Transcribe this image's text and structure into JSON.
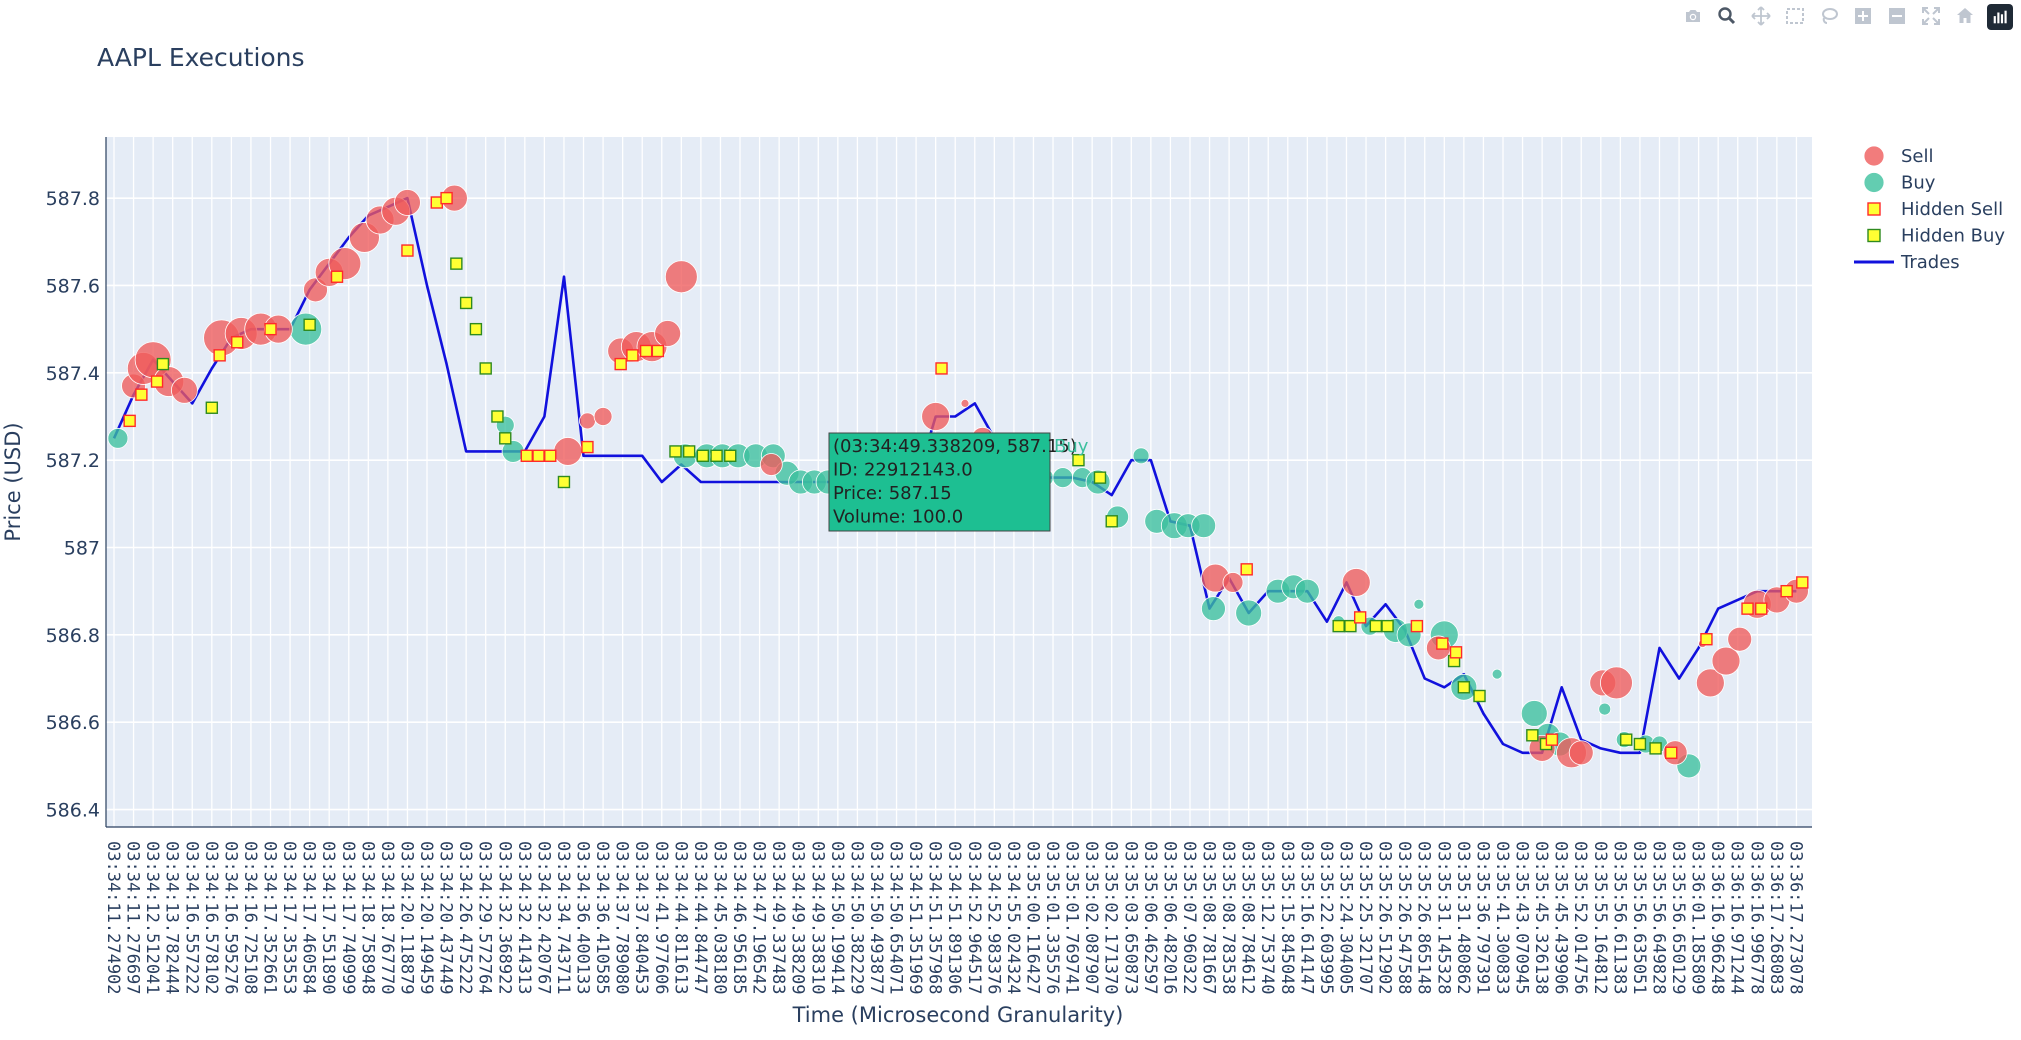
{
  "chart_data": {
    "type": "scatter",
    "title": "AAPL Executions",
    "xlabel": "Time (Microsecond Granularity)",
    "ylabel": "Price (USD)",
    "ylim": [
      586.36,
      587.94
    ],
    "yticks": [
      586.4,
      586.6,
      586.8,
      587,
      587.2,
      587.4,
      587.6,
      587.8
    ],
    "ytick_labels": [
      "586.4",
      "586.6",
      "586.8",
      "587",
      "587.2",
      "587.4",
      "587.6",
      "587.8"
    ],
    "xtick_labels": [
      "03:34:11.274902",
      "03:34:11.276697",
      "03:34:12.512041",
      "03:34:13.782444",
      "03:34:16.557222",
      "03:34:16.578102",
      "03:34:16.595276",
      "03:34:16.725108",
      "03:34:17.352661",
      "03:34:17.353553",
      "03:34:17.460584",
      "03:34:17.551890",
      "03:34:17.740999",
      "03:34:18.758948",
      "03:34:18.767770",
      "03:34:20.118879",
      "03:34:20.149459",
      "03:34:20.437449",
      "03:34:26.475222",
      "03:34:29.572764",
      "03:34:32.368922",
      "03:34:32.414313",
      "03:34:32.420767",
      "03:34:34.743711",
      "03:34:36.400133",
      "03:34:36.410585",
      "03:34:37.789080",
      "03:34:37.840453",
      "03:34:41.977606",
      "03:34:44.811613",
      "03:34:44.844747",
      "03:34:45.038180",
      "03:34:46.956185",
      "03:34:47.196542",
      "03:34:49.337483",
      "03:34:49.338209",
      "03:34:49.338310",
      "03:34:50.199414",
      "03:34:50.382229",
      "03:34:50.493877",
      "03:34:50.654071",
      "03:34:51.351969",
      "03:34:51.357968",
      "03:34:51.891306",
      "03:34:52.964517",
      "03:34:52.983376",
      "03:34:55.024324",
      "03:35:00.116427",
      "03:35:01.335576",
      "03:35:01.769741",
      "03:35:02.087907",
      "03:35:02.171370",
      "03:35:03.650873",
      "03:35:06.462597",
      "03:35:06.482016",
      "03:35:07.960322",
      "03:35:08.781667",
      "03:35:08.783538",
      "03:35:08.784612",
      "03:35:12.753740",
      "03:35:15.845048",
      "03:35:16.614147",
      "03:35:22.603995",
      "03:35:24.304005",
      "03:35:25.321707",
      "03:35:26.512902",
      "03:35:26.547588",
      "03:35:26.865148",
      "03:35:31.145328",
      "03:35:31.480862",
      "03:35:36.797391",
      "03:35:41.300833",
      "03:35:43.070945",
      "03:35:45.326138",
      "03:35:45.439906",
      "03:35:52.014756",
      "03:35:55.164812",
      "03:35:56.611383",
      "03:35:56.635051",
      "03:35:56.649828",
      "03:35:56.650129",
      "03:36:01.185809",
      "03:36:16.966248",
      "03:36:16.971244",
      "03:36:16.996778",
      "03:36:17.268083",
      "03:36:17.273078"
    ],
    "legend": [
      "Sell",
      "Buy",
      "Hidden Sell",
      "Hidden Buy",
      "Trades"
    ],
    "legend_position": "top-right",
    "colors": {
      "sell": "#ef5b5b",
      "buy": "#3cc09e",
      "hidden_sell_fill": "#ffff33",
      "hidden_sell_edge": "#ff2a2a",
      "hidden_buy_fill": "#ffff33",
      "hidden_buy_edge": "#2f8a1f",
      "trades": "#1111dd",
      "plot_bg": "#e5ecf6",
      "hover_bg": "#1dbf92"
    },
    "series": [
      {
        "name": "Trades",
        "kind": "line",
        "x": [
          0,
          1,
          2,
          3,
          4,
          5,
          6,
          7,
          8,
          9,
          10,
          11,
          12,
          13,
          14,
          15,
          16,
          17,
          18,
          19,
          20,
          21,
          22,
          23,
          24,
          25,
          26,
          27,
          28,
          29,
          30,
          31,
          32,
          33,
          34,
          35,
          36,
          37,
          38,
          39,
          40,
          41,
          42,
          43,
          44,
          45,
          46,
          47,
          48,
          49,
          50,
          51,
          52,
          53,
          54,
          55,
          56,
          57,
          58,
          59,
          60,
          61,
          62,
          63,
          64,
          65,
          66,
          67,
          68,
          69,
          70,
          71,
          72,
          73,
          74,
          75,
          76,
          77,
          78,
          79,
          80,
          81,
          82,
          83,
          84,
          85,
          86
        ],
        "y": [
          587.25,
          587.35,
          587.43,
          587.38,
          587.33,
          587.41,
          587.48,
          587.5,
          587.5,
          587.5,
          587.59,
          587.65,
          587.71,
          587.76,
          587.78,
          587.8,
          587.6,
          587.42,
          587.22,
          587.22,
          587.22,
          587.22,
          587.3,
          587.62,
          587.21,
          587.21,
          587.21,
          587.21,
          587.15,
          587.19,
          587.15,
          587.15,
          587.15,
          587.15,
          587.15,
          587.15,
          587.15,
          587.15,
          587.15,
          587.15,
          587.15,
          587.15,
          587.3,
          587.3,
          587.33,
          587.25,
          587.2,
          587.16,
          587.16,
          587.16,
          587.15,
          587.12,
          587.2,
          587.2,
          587.06,
          587.05,
          586.86,
          586.93,
          586.85,
          586.9,
          586.9,
          586.9,
          586.83,
          586.92,
          586.82,
          586.87,
          586.81,
          586.7,
          586.68,
          586.71,
          586.62,
          586.55,
          586.53,
          586.53,
          586.68,
          586.56,
          586.54,
          586.53,
          586.53,
          586.77,
          586.7,
          586.77,
          586.86,
          586.88,
          586.9,
          586.9,
          586.9
        ]
      },
      {
        "name": "Sell",
        "kind": "bubble",
        "points": [
          [
            1.0,
            587.37,
            12
          ],
          [
            1.5,
            587.41,
            16
          ],
          [
            2.0,
            587.43,
            18
          ],
          [
            2.8,
            587.38,
            15
          ],
          [
            3.6,
            587.36,
            13
          ],
          [
            5.5,
            587.48,
            18
          ],
          [
            6.5,
            587.49,
            16
          ],
          [
            7.5,
            587.5,
            16
          ],
          [
            8.4,
            587.5,
            14
          ],
          [
            10.3,
            587.59,
            12
          ],
          [
            11.0,
            587.63,
            14
          ],
          [
            11.8,
            587.65,
            16
          ],
          [
            12.8,
            587.71,
            15
          ],
          [
            13.6,
            587.75,
            14
          ],
          [
            14.4,
            587.77,
            14
          ],
          [
            15.0,
            587.79,
            13
          ],
          [
            17.4,
            587.8,
            13
          ],
          [
            23.2,
            587.22,
            14
          ],
          [
            24.2,
            587.29,
            8
          ],
          [
            25.0,
            587.3,
            9
          ],
          [
            25.9,
            587.45,
            13
          ],
          [
            26.7,
            587.46,
            15
          ],
          [
            27.5,
            587.46,
            15
          ],
          [
            28.3,
            587.49,
            13
          ],
          [
            29.0,
            587.62,
            16
          ],
          [
            33.6,
            587.19,
            11
          ],
          [
            42.0,
            587.3,
            14
          ],
          [
            43.5,
            587.33,
            4
          ],
          [
            44.4,
            587.25,
            11
          ],
          [
            56.3,
            586.93,
            14
          ],
          [
            57.2,
            586.92,
            10
          ],
          [
            63.5,
            586.92,
            14
          ],
          [
            67.7,
            586.77,
            12
          ],
          [
            73.0,
            586.54,
            13
          ],
          [
            74.5,
            586.53,
            15
          ],
          [
            75.0,
            586.53,
            12
          ],
          [
            76.1,
            586.69,
            13
          ],
          [
            76.8,
            586.69,
            16
          ],
          [
            79.8,
            586.53,
            12
          ],
          [
            81.2,
            586.78,
            4
          ],
          [
            81.6,
            586.69,
            14
          ],
          [
            82.4,
            586.74,
            14
          ],
          [
            83.1,
            586.79,
            12
          ],
          [
            84.0,
            586.87,
            14
          ],
          [
            85.0,
            586.88,
            13
          ],
          [
            86.0,
            586.9,
            12
          ]
        ]
      },
      {
        "name": "Buy",
        "kind": "bubble",
        "points": [
          [
            0.2,
            587.25,
            10
          ],
          [
            9.8,
            587.5,
            16
          ],
          [
            20.0,
            587.28,
            9
          ],
          [
            20.4,
            587.22,
            11
          ],
          [
            29.2,
            587.21,
            12
          ],
          [
            30.3,
            587.21,
            12
          ],
          [
            31.1,
            587.21,
            12
          ],
          [
            31.9,
            587.21,
            12
          ],
          [
            32.8,
            587.21,
            12
          ],
          [
            33.7,
            587.21,
            12
          ],
          [
            34.4,
            587.17,
            12
          ],
          [
            35.1,
            587.15,
            12
          ],
          [
            35.8,
            587.15,
            12
          ],
          [
            36.5,
            587.15,
            12
          ],
          [
            37.2,
            587.15,
            12
          ],
          [
            38.0,
            587.15,
            12
          ],
          [
            38.8,
            587.15,
            12
          ],
          [
            39.5,
            587.15,
            10
          ],
          [
            47.5,
            587.16,
            10
          ],
          [
            48.5,
            587.16,
            10
          ],
          [
            49.5,
            587.16,
            10
          ],
          [
            50.3,
            587.15,
            12
          ],
          [
            51.3,
            587.07,
            11
          ],
          [
            52.5,
            587.21,
            8
          ],
          [
            53.3,
            587.06,
            12
          ],
          [
            54.2,
            587.05,
            13
          ],
          [
            54.9,
            587.05,
            12
          ],
          [
            55.7,
            587.05,
            12
          ],
          [
            56.2,
            586.86,
            12
          ],
          [
            58.0,
            586.85,
            13
          ],
          [
            59.5,
            586.9,
            12
          ],
          [
            60.3,
            586.91,
            12
          ],
          [
            61.0,
            586.9,
            12
          ],
          [
            62.6,
            586.83,
            6
          ],
          [
            64.2,
            586.82,
            9
          ],
          [
            65.5,
            586.81,
            12
          ],
          [
            66.2,
            586.8,
            12
          ],
          [
            66.7,
            586.87,
            5
          ],
          [
            68.0,
            586.8,
            14
          ],
          [
            69.0,
            586.68,
            13
          ],
          [
            70.7,
            586.71,
            5
          ],
          [
            72.6,
            586.62,
            13
          ],
          [
            73.3,
            586.57,
            12
          ],
          [
            73.9,
            586.55,
            12
          ],
          [
            76.2,
            586.63,
            6
          ],
          [
            77.2,
            586.56,
            8
          ],
          [
            78.3,
            586.55,
            9
          ],
          [
            79.0,
            586.55,
            8
          ],
          [
            80.5,
            586.5,
            12
          ]
        ]
      },
      {
        "name": "Hidden Sell",
        "kind": "square",
        "points": [
          [
            0.8,
            587.29
          ],
          [
            1.4,
            587.35
          ],
          [
            2.2,
            587.38
          ],
          [
            5.4,
            587.44
          ],
          [
            6.3,
            587.47
          ],
          [
            8.0,
            587.5
          ],
          [
            11.4,
            587.62
          ],
          [
            15.0,
            587.68
          ],
          [
            16.5,
            587.79
          ],
          [
            17.0,
            587.8
          ],
          [
            21.1,
            587.21
          ],
          [
            21.7,
            587.21
          ],
          [
            22.3,
            587.21
          ],
          [
            24.2,
            587.23
          ],
          [
            25.9,
            587.42
          ],
          [
            26.5,
            587.44
          ],
          [
            27.2,
            587.45
          ],
          [
            27.8,
            587.45
          ],
          [
            42.3,
            587.41
          ],
          [
            57.9,
            586.95
          ],
          [
            63.7,
            586.84
          ],
          [
            66.6,
            586.82
          ],
          [
            67.9,
            586.78
          ],
          [
            68.6,
            586.76
          ],
          [
            73.5,
            586.56
          ],
          [
            79.6,
            586.53
          ],
          [
            81.4,
            586.79
          ],
          [
            83.5,
            586.86
          ],
          [
            84.2,
            586.86
          ],
          [
            85.5,
            586.9
          ],
          [
            86.3,
            586.92
          ]
        ]
      },
      {
        "name": "Hidden Buy",
        "kind": "square",
        "points": [
          [
            2.5,
            587.42
          ],
          [
            5.0,
            587.32
          ],
          [
            10.0,
            587.51
          ],
          [
            17.5,
            587.65
          ],
          [
            18.0,
            587.56
          ],
          [
            18.5,
            587.5
          ],
          [
            19.0,
            587.41
          ],
          [
            19.6,
            587.3
          ],
          [
            20.0,
            587.25
          ],
          [
            23.0,
            587.15
          ],
          [
            28.7,
            587.22
          ],
          [
            29.4,
            587.22
          ],
          [
            30.1,
            587.21
          ],
          [
            30.8,
            587.21
          ],
          [
            31.5,
            587.21
          ],
          [
            49.3,
            587.2
          ],
          [
            50.4,
            587.16
          ],
          [
            51.0,
            587.06
          ],
          [
            62.6,
            586.82
          ],
          [
            63.2,
            586.82
          ],
          [
            64.5,
            586.82
          ],
          [
            65.1,
            586.82
          ],
          [
            68.5,
            586.74
          ],
          [
            69.0,
            586.68
          ],
          [
            69.8,
            586.66
          ],
          [
            72.5,
            586.57
          ],
          [
            73.2,
            586.55
          ],
          [
            77.3,
            586.56
          ],
          [
            78.0,
            586.55
          ],
          [
            78.8,
            586.54
          ]
        ]
      }
    ],
    "hover": {
      "text": [
        "(03:34:49.338209, 587.15)",
        "ID: 22912143.0",
        "Price: 587.15",
        "Volume: 100.0"
      ],
      "series_label": "Buy"
    }
  },
  "toolbar": {
    "icons": [
      "camera-icon",
      "zoom-icon",
      "pan-icon",
      "box-select-icon",
      "lasso-icon",
      "zoom-in-icon",
      "zoom-out-icon",
      "autoscale-icon",
      "home-icon",
      "plotly-logo-icon"
    ]
  }
}
